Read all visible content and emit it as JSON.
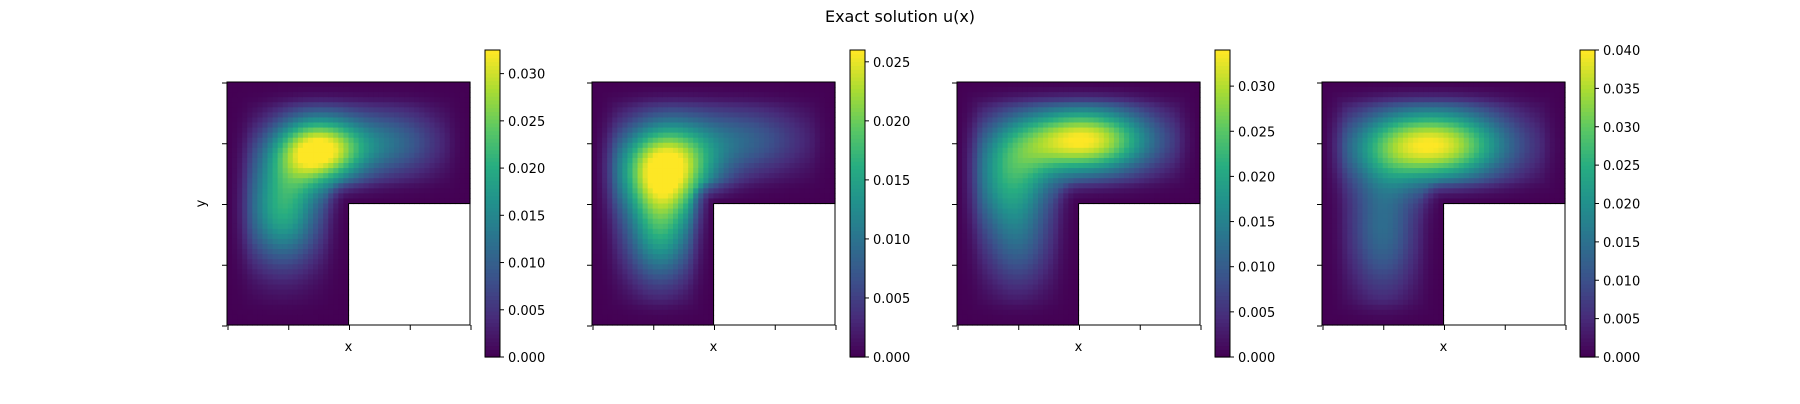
{
  "figure": {
    "title": "Exact solution u(x)",
    "colormap": "viridis"
  },
  "chart_data": [
    {
      "type": "heatmap",
      "title": "",
      "xlabel": "x",
      "ylabel": "y",
      "domain": "L-shaped",
      "colorbar_range": [
        0,
        0.0325
      ],
      "colorbar_ticks": [
        "0.000",
        "0.005",
        "0.010",
        "0.015",
        "0.020",
        "0.025",
        "0.030"
      ],
      "grid": false,
      "peak_value": 0.0325
    },
    {
      "type": "heatmap",
      "title": "",
      "xlabel": "x",
      "ylabel": "",
      "domain": "L-shaped",
      "colorbar_range": [
        0,
        0.026
      ],
      "colorbar_ticks": [
        "0.000",
        "0.005",
        "0.010",
        "0.015",
        "0.020",
        "0.025"
      ],
      "grid": false,
      "peak_value": 0.026
    },
    {
      "type": "heatmap",
      "title": "",
      "xlabel": "x",
      "ylabel": "",
      "domain": "L-shaped",
      "colorbar_range": [
        0,
        0.034
      ],
      "colorbar_ticks": [
        "0.000",
        "0.005",
        "0.010",
        "0.015",
        "0.020",
        "0.025",
        "0.030"
      ],
      "grid": false,
      "peak_value": 0.034
    },
    {
      "type": "heatmap",
      "title": "",
      "xlabel": "x",
      "ylabel": "",
      "domain": "L-shaped",
      "colorbar_range": [
        0,
        0.04
      ],
      "colorbar_ticks": [
        "0.000",
        "0.005",
        "0.010",
        "0.015",
        "0.020",
        "0.025",
        "0.030",
        "0.035",
        "0.040"
      ],
      "grid": false,
      "peak_value": 0.04
    }
  ]
}
